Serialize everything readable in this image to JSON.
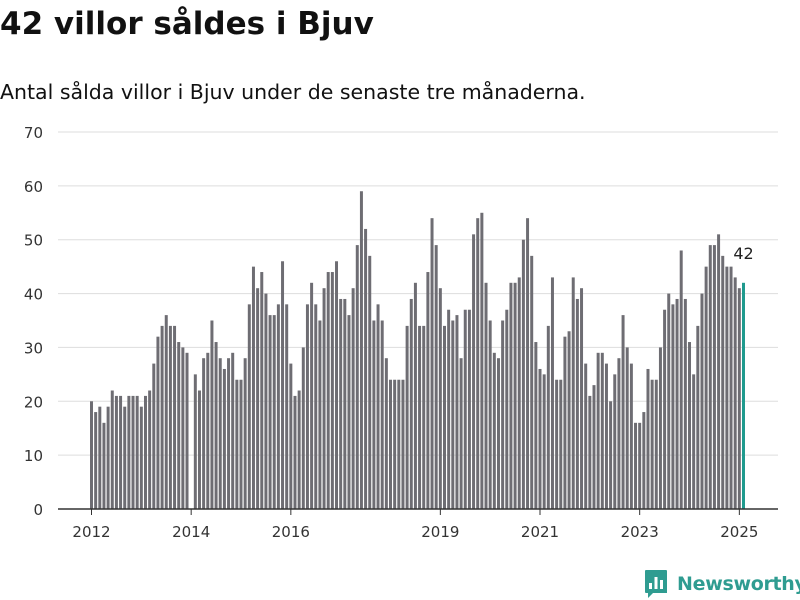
{
  "header": {
    "title": "42 villor såldes i Bjuv",
    "subtitle": "Antal sålda villor i Bjuv under de senaste tre månaderna."
  },
  "brand": {
    "name": "Newsworthy",
    "icon": "newsworthy-logo-icon",
    "color": "#2f9c91"
  },
  "colors": {
    "bar": "#6e6d73",
    "highlight": "#1f9a8e",
    "grid": "#dddddd",
    "axis": "#333333"
  },
  "chart_data": {
    "type": "bar",
    "title": "42 villor såldes i Bjuv",
    "subtitle": "Antal sålda villor i Bjuv under de senaste tre månaderna.",
    "xlabel": "",
    "ylabel": "",
    "ylim": [
      0,
      70
    ],
    "yticks": [
      0,
      10,
      20,
      30,
      40,
      50,
      60,
      70
    ],
    "xticks": [
      "2012",
      "2014",
      "2016",
      "2019",
      "2021",
      "2023",
      "2025"
    ],
    "grid": true,
    "legend": "none",
    "start": "2012-01",
    "frequency": "monthly (rolling three-month totals)",
    "highlight_label": "42",
    "values": [
      20,
      18,
      19,
      16,
      19,
      22,
      21,
      21,
      19,
      21,
      21,
      21,
      19,
      21,
      22,
      27,
      32,
      34,
      36,
      34,
      34,
      31,
      30,
      29,
      0,
      25,
      22,
      28,
      29,
      35,
      31,
      28,
      26,
      28,
      29,
      24,
      24,
      28,
      38,
      45,
      41,
      44,
      40,
      36,
      36,
      38,
      46,
      38,
      27,
      21,
      22,
      30,
      38,
      42,
      38,
      35,
      41,
      44,
      44,
      46,
      39,
      39,
      36,
      41,
      49,
      59,
      52,
      47,
      35,
      38,
      35,
      28,
      24,
      24,
      24,
      24,
      34,
      39,
      42,
      34,
      34,
      44,
      54,
      49,
      41,
      34,
      37,
      35,
      36,
      28,
      37,
      37,
      51,
      54,
      55,
      42,
      35,
      29,
      28,
      35,
      37,
      42,
      42,
      43,
      50,
      54,
      47,
      31,
      26,
      25,
      34,
      43,
      24,
      24,
      32,
      33,
      43,
      39,
      41,
      27,
      21,
      23,
      29,
      29,
      27,
      20,
      25,
      28,
      36,
      30,
      27,
      16,
      16,
      18,
      26,
      24,
      24,
      30,
      37,
      40,
      38,
      39,
      48,
      39,
      31,
      25,
      34,
      40,
      45,
      49,
      49,
      51,
      47,
      45,
      45,
      43,
      41,
      42
    ]
  }
}
